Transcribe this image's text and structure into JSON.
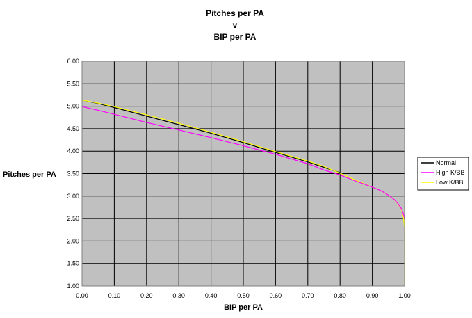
{
  "chart_data": {
    "type": "line",
    "title_lines": [
      "Pitches per PA",
      "v",
      "BIP per PA"
    ],
    "xlabel": "BIP per PA",
    "ylabel": "Pitches per PA",
    "xlim": [
      0,
      1
    ],
    "ylim": [
      1,
      6
    ],
    "x_ticks": [
      0,
      0.1,
      0.2,
      0.3,
      0.4,
      0.5,
      0.6,
      0.7,
      0.8,
      0.9,
      1.0
    ],
    "x_tick_labels": [
      "0.00",
      "0.10",
      "0.20",
      "0.30",
      "0.40",
      "0.50",
      "0.60",
      "0.70",
      "0.80",
      "0.90",
      "1.00"
    ],
    "y_ticks": [
      1,
      1.5,
      2,
      2.5,
      3,
      3.5,
      4,
      4.5,
      5,
      5.5,
      6
    ],
    "y_tick_labels": [
      "1.00",
      "1.50",
      "2.00",
      "2.50",
      "3.00",
      "3.50",
      "4.00",
      "4.50",
      "5.00",
      "5.50",
      "6.00"
    ],
    "grid": true,
    "plot_background": "#c0c0c0",
    "legend_position": "right",
    "series": [
      {
        "name": "Normal",
        "color": "#000000",
        "x": [
          0.0,
          0.05,
          0.1,
          0.2,
          0.3,
          0.4,
          0.5,
          0.6,
          0.7,
          0.75,
          0.8
        ],
        "y": [
          5.14,
          5.06,
          4.97,
          4.78,
          4.59,
          4.4,
          4.19,
          3.97,
          3.76,
          3.64,
          3.52
        ]
      },
      {
        "name": "High K/BB",
        "color": "#ff00ff",
        "x": [
          0.0,
          0.05,
          0.1,
          0.2,
          0.3,
          0.4,
          0.5,
          0.6,
          0.7,
          0.75,
          0.8,
          0.85,
          0.9,
          0.93,
          0.95,
          0.97,
          0.98,
          0.99,
          0.995,
          1.0
        ],
        "y": [
          4.99,
          4.91,
          4.82,
          4.64,
          4.47,
          4.3,
          4.12,
          3.93,
          3.72,
          3.58,
          3.47,
          3.33,
          3.2,
          3.11,
          3.02,
          2.91,
          2.83,
          2.72,
          2.63,
          2.5
        ]
      },
      {
        "name": "Low K/BB",
        "color": "#ffff00",
        "x": [
          0.0,
          0.05,
          0.1,
          0.2,
          0.3,
          0.4,
          0.5,
          0.6,
          0.7,
          0.75,
          0.8,
          0.85,
          0.9,
          0.93,
          0.95,
          0.97,
          0.98,
          0.99,
          0.995,
          1.0,
          1.0
        ],
        "y": [
          5.14,
          5.07,
          4.99,
          4.81,
          4.62,
          4.42,
          4.21,
          3.99,
          3.78,
          3.66,
          3.51,
          3.35,
          3.2,
          3.11,
          3.02,
          2.91,
          2.82,
          2.7,
          2.6,
          2.3,
          1.0
        ]
      }
    ]
  }
}
